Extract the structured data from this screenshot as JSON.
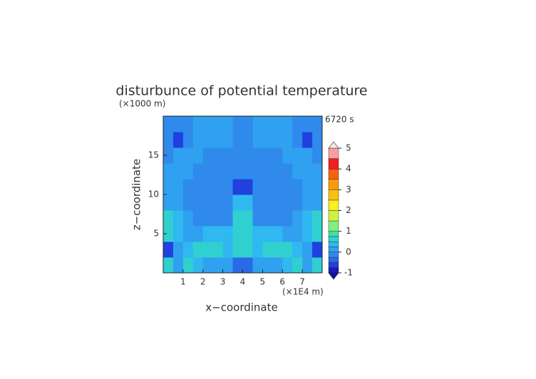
{
  "chart_data": {
    "type": "contour",
    "title": "disturbunce of potential temperature",
    "y_unit": "(×1000 m)",
    "time_label": "6720 s",
    "y_label": "z−coordinate",
    "x_label": "x−coordinate",
    "x_unit": "(×1E4 m)",
    "xlim": [
      0,
      8
    ],
    "ylim": [
      0,
      20
    ],
    "xticks": [
      1,
      2,
      3,
      4,
      5,
      6,
      7
    ],
    "yticks": [
      5,
      10,
      15
    ],
    "x": [
      0.25,
      0.75,
      1.25,
      1.75,
      2.25,
      2.75,
      3.25,
      3.75,
      4.25,
      4.75,
      5.25,
      5.75,
      6.25,
      6.75,
      7.25,
      7.75
    ],
    "y": [
      1,
      3,
      5,
      7,
      9,
      11,
      13,
      15,
      17,
      19
    ],
    "z": [
      [
        0.6,
        0.2,
        0.6,
        0.3,
        0.1,
        0.2,
        0.1,
        -0.5,
        -0.5,
        0.1,
        0.2,
        0.1,
        0.3,
        0.6,
        0.2,
        0.6
      ],
      [
        -0.6,
        0.1,
        0.4,
        0.7,
        0.7,
        0.6,
        0.4,
        0.5,
        0.5,
        0.4,
        0.6,
        0.7,
        0.7,
        0.4,
        0.1,
        -0.6
      ],
      [
        0.6,
        0.4,
        0.1,
        0.2,
        0.3,
        0.3,
        0.4,
        0.6,
        0.6,
        0.4,
        0.3,
        0.3,
        0.2,
        0.1,
        0.4,
        0.6
      ],
      [
        0.6,
        0.3,
        0.1,
        -0.1,
        -0.1,
        -0.1,
        -0.1,
        0.5,
        0.5,
        -0.1,
        -0.1,
        -0.1,
        -0.1,
        0.1,
        0.3,
        0.6
      ],
      [
        0.2,
        0.1,
        -0.1,
        -0.2,
        -0.2,
        -0.2,
        -0.2,
        0.3,
        0.3,
        -0.2,
        -0.2,
        -0.2,
        -0.2,
        -0.1,
        0.1,
        0.2
      ],
      [
        0.1,
        0.1,
        -0.1,
        -0.2,
        -0.2,
        -0.2,
        -0.2,
        -0.6,
        -0.6,
        -0.2,
        -0.2,
        -0.2,
        -0.2,
        -0.1,
        0.1,
        0.1
      ],
      [
        0.1,
        0.1,
        0.1,
        -0.1,
        -0.2,
        -0.2,
        -0.2,
        -0.2,
        -0.2,
        -0.2,
        -0.2,
        -0.2,
        -0.1,
        0.1,
        0.1,
        0.1
      ],
      [
        -0.1,
        0.1,
        0.2,
        0.1,
        -0.1,
        -0.1,
        -0.1,
        -0.1,
        -0.1,
        -0.1,
        -0.1,
        -0.1,
        0.1,
        0.2,
        0.1,
        -0.1
      ],
      [
        -0.1,
        -0.6,
        -0.1,
        0.1,
        0.1,
        0.1,
        0,
        -0.1,
        -0.1,
        0,
        0.1,
        0.1,
        0.1,
        -0.1,
        -0.6,
        -0.1
      ],
      [
        -0.1,
        -0.2,
        -0.1,
        0.1,
        0.2,
        0.1,
        0,
        -0.1,
        -0.1,
        0,
        0.1,
        0.2,
        0.1,
        -0.1,
        -0.2,
        -0.1
      ]
    ],
    "levels": [
      -1,
      -0.75,
      -0.5,
      -0.25,
      0,
      0.25,
      0.5,
      0.75,
      1,
      1.5,
      2,
      2.5,
      3,
      3.5,
      4,
      4.5,
      5
    ],
    "colors": [
      "#1a1ab4",
      "#2040e0",
      "#2a6ae8",
      "#2f8aec",
      "#30a0f0",
      "#30b8f0",
      "#30d0d0",
      "#40e0a0",
      "#80f080",
      "#d0f040",
      "#f8f020",
      "#f8c010",
      "#f89a10",
      "#f86010",
      "#f02020",
      "#f8a0a0"
    ],
    "under_color": "#1010a0",
    "over_color": "#fbe4e4",
    "cbar_ticks": [
      -1,
      0,
      1,
      2,
      3,
      4,
      5
    ]
  }
}
